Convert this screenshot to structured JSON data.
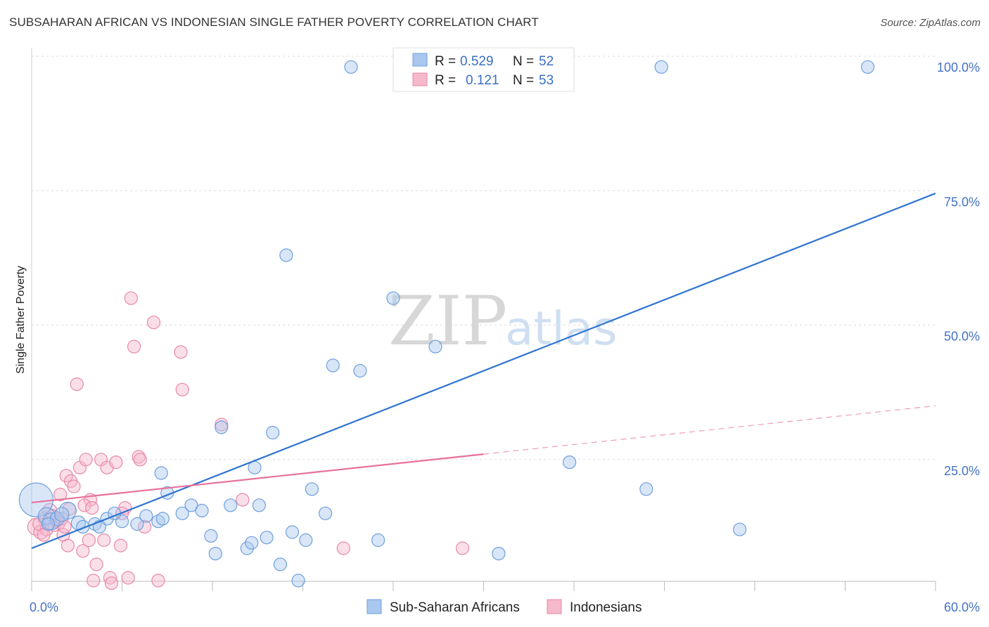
{
  "title": "SUBSAHARAN AFRICAN VS INDONESIAN SINGLE FATHER POVERTY CORRELATION CHART",
  "source": "Source: ZipAtlas.com",
  "watermark": {
    "zip": "ZIP",
    "atlas": "atlas"
  },
  "legend": {
    "r_label": "R =",
    "n_label": "N =",
    "rows": [
      {
        "r": "0.529",
        "n": "52"
      },
      {
        "r": "0.121",
        "n": "53"
      }
    ]
  },
  "bottom_legend": [
    "Sub-Saharan Africans",
    "Indonesians"
  ],
  "colors": {
    "blue_fill": "#a9c7ef",
    "blue_stroke": "#6f9fdc",
    "blue_line": "#2f74d0",
    "pink_fill": "#f6b8cb",
    "pink_stroke": "#e888a8",
    "pink_line": "#e8709a",
    "tick_text": "#4472c4"
  },
  "chart_data": {
    "type": "scatter",
    "title": "SUBSAHARAN AFRICAN VS INDONESIAN SINGLE FATHER POVERTY CORRELATION CHART",
    "xlabel": "",
    "ylabel": "Single Father Poverty",
    "xlim": [
      0,
      60
    ],
    "ylim": [
      0,
      100
    ],
    "x_tick_labels": [
      "0.0%",
      "60.0%"
    ],
    "y_tick_values": [
      25,
      50,
      75,
      100
    ],
    "y_tick_labels": [
      "25.0%",
      "50.0%",
      "75.0%",
      "100.0%"
    ],
    "grid": true,
    "legend_position": "top-center",
    "series": [
      {
        "name": "Sub-Saharan Africans",
        "color": "#a9c7ef",
        "trend": {
          "x": [
            0,
            60
          ],
          "y": [
            8.5,
            74.5
          ],
          "style": "solid"
        },
        "points": [
          [
            0.3,
            17.5,
            24
          ],
          [
            1.0,
            14.5,
            12
          ],
          [
            1.3,
            13.5,
            12
          ],
          [
            1.7,
            14.0,
            10
          ],
          [
            2.4,
            15.5,
            12
          ],
          [
            3.1,
            13.2,
            10
          ],
          [
            3.4,
            12.5,
            9
          ],
          [
            4.2,
            13.0,
            9
          ],
          [
            5.0,
            14.0,
            9
          ],
          [
            6.0,
            13.5,
            9
          ],
          [
            7.0,
            13.0,
            9
          ],
          [
            7.6,
            14.5,
            9
          ],
          [
            8.6,
            22.5,
            9
          ],
          [
            8.4,
            13.5,
            9
          ],
          [
            9.0,
            18.8,
            9
          ],
          [
            10.0,
            15.0,
            9
          ],
          [
            10.6,
            16.5,
            9
          ],
          [
            11.3,
            15.5,
            9
          ],
          [
            11.9,
            10.8,
            9
          ],
          [
            12.2,
            7.5,
            9
          ],
          [
            12.6,
            31.0,
            9
          ],
          [
            13.2,
            16.5,
            9
          ],
          [
            14.3,
            8.5,
            9
          ],
          [
            14.6,
            9.5,
            9
          ],
          [
            14.8,
            23.5,
            9
          ],
          [
            15.1,
            16.5,
            9
          ],
          [
            15.6,
            10.5,
            9
          ],
          [
            16.0,
            30.0,
            9
          ],
          [
            16.5,
            5.5,
            9
          ],
          [
            16.9,
            63.0,
            9
          ],
          [
            17.3,
            11.5,
            9
          ],
          [
            17.7,
            2.5,
            9
          ],
          [
            18.2,
            10.0,
            9
          ],
          [
            18.6,
            19.5,
            9
          ],
          [
            19.5,
            15.0,
            9
          ],
          [
            20.0,
            42.5,
            9
          ],
          [
            21.8,
            41.5,
            9
          ],
          [
            23.0,
            10.0,
            9
          ],
          [
            24.0,
            55.0,
            9
          ],
          [
            26.8,
            46.0,
            9
          ],
          [
            31.0,
            7.5,
            9
          ],
          [
            35.7,
            24.5,
            9
          ],
          [
            40.8,
            19.5,
            9
          ],
          [
            47.0,
            12.0,
            9
          ],
          [
            21.2,
            98.0,
            9
          ],
          [
            41.8,
            98.0,
            9
          ],
          [
            55.5,
            98.0,
            9
          ],
          [
            2.0,
            14.8,
            10
          ],
          [
            4.5,
            12.5,
            9
          ],
          [
            5.5,
            15.0,
            9
          ],
          [
            1.1,
            13.0,
            9
          ],
          [
            8.7,
            14.0,
            9
          ]
        ]
      },
      {
        "name": "Indonesians",
        "color": "#f6b8cb",
        "trend": {
          "x": [
            0,
            30
          ],
          "y": [
            17.0,
            26.0
          ],
          "style": "solid",
          "extended_to": [
            60,
            35.0
          ],
          "extended_style": "dashed"
        },
        "points": [
          [
            0.3,
            12.5,
            12
          ],
          [
            0.6,
            11.5,
            10
          ],
          [
            0.9,
            14.0,
            10
          ],
          [
            1.2,
            15.5,
            10
          ],
          [
            1.6,
            13.5,
            9
          ],
          [
            1.9,
            18.5,
            9
          ],
          [
            2.1,
            11.0,
            9
          ],
          [
            2.3,
            22.0,
            9
          ],
          [
            2.4,
            9.0,
            9
          ],
          [
            2.6,
            21.0,
            9
          ],
          [
            2.8,
            20.0,
            9
          ],
          [
            3.0,
            39.0,
            9
          ],
          [
            3.2,
            23.5,
            9
          ],
          [
            3.4,
            8.0,
            9
          ],
          [
            3.6,
            25.0,
            9
          ],
          [
            3.8,
            10.0,
            9
          ],
          [
            3.9,
            17.5,
            9
          ],
          [
            4.1,
            2.5,
            9
          ],
          [
            4.3,
            5.5,
            9
          ],
          [
            4.6,
            25.0,
            9
          ],
          [
            4.8,
            10.0,
            9
          ],
          [
            5.0,
            23.5,
            9
          ],
          [
            5.2,
            3.0,
            9
          ],
          [
            5.3,
            2.0,
            9
          ],
          [
            5.6,
            24.5,
            9
          ],
          [
            5.9,
            9.0,
            9
          ],
          [
            6.2,
            16.0,
            9
          ],
          [
            6.4,
            3.0,
            9
          ],
          [
            6.6,
            55.0,
            9
          ],
          [
            6.8,
            46.0,
            9
          ],
          [
            7.1,
            25.5,
            9
          ],
          [
            7.2,
            25.0,
            9
          ],
          [
            7.5,
            12.5,
            9
          ],
          [
            8.1,
            50.5,
            9
          ],
          [
            8.4,
            2.5,
            9
          ],
          [
            9.9,
            45.0,
            9
          ],
          [
            10.0,
            38.0,
            9
          ],
          [
            12.6,
            31.5,
            9
          ],
          [
            14.0,
            17.5,
            9
          ],
          [
            20.7,
            8.5,
            9
          ],
          [
            28.6,
            8.5,
            9
          ],
          [
            0.5,
            13.0,
            9
          ],
          [
            1.0,
            12.0,
            9
          ],
          [
            1.4,
            14.5,
            9
          ],
          [
            1.8,
            13.2,
            9
          ],
          [
            2.5,
            15.8,
            9
          ],
          [
            3.5,
            16.5,
            9
          ],
          [
            4.0,
            16.0,
            9
          ],
          [
            0.8,
            11.0,
            9
          ],
          [
            1.5,
            12.8,
            9
          ],
          [
            2.0,
            14.0,
            9
          ],
          [
            2.2,
            12.5,
            9
          ],
          [
            6.0,
            15.0,
            9
          ]
        ]
      }
    ]
  }
}
